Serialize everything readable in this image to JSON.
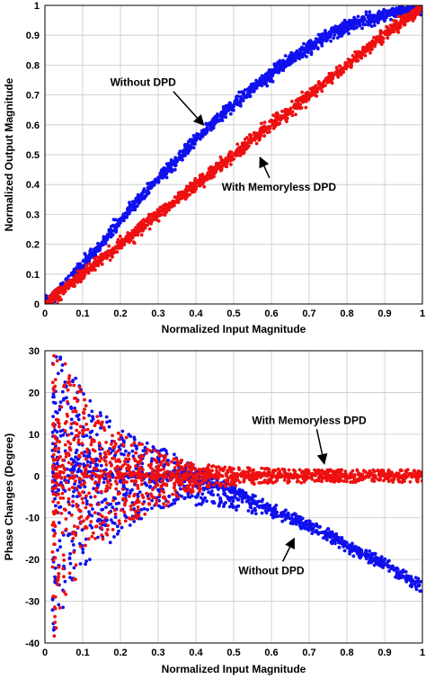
{
  "chart_data": [
    {
      "type": "scatter",
      "title": "",
      "xlabel": "Normalized Input Magnitude",
      "ylabel": "Normalized Output Magnitude",
      "xlim": [
        0,
        1
      ],
      "ylim": [
        0,
        1
      ],
      "xticks": [
        "0",
        "0.1",
        "0.2",
        "0.3",
        "0.4",
        "0.5",
        "0.6",
        "0.7",
        "0.8",
        "0.9",
        "1"
      ],
      "yticks": [
        "0",
        "0.1",
        "0.2",
        "0.3",
        "0.4",
        "0.5",
        "0.6",
        "0.7",
        "0.8",
        "0.9",
        "1"
      ],
      "grid": true,
      "series": [
        {
          "color": "#1010ee",
          "x": [
            0.0,
            0.05,
            0.1,
            0.15,
            0.2,
            0.25,
            0.3,
            0.35,
            0.4,
            0.45,
            0.5,
            0.55,
            0.6,
            0.65,
            0.7,
            0.75,
            0.8,
            0.85,
            0.9,
            0.95,
            1.0
          ],
          "y": [
            0.0,
            0.06,
            0.13,
            0.2,
            0.28,
            0.35,
            0.42,
            0.48,
            0.55,
            0.61,
            0.67,
            0.72,
            0.77,
            0.82,
            0.86,
            0.9,
            0.93,
            0.95,
            0.97,
            0.98,
            0.99
          ],
          "spread": 0.02
        },
        {
          "color": "#ee1010",
          "x": [
            0.0,
            0.05,
            0.1,
            0.15,
            0.2,
            0.25,
            0.3,
            0.35,
            0.4,
            0.45,
            0.5,
            0.55,
            0.6,
            0.65,
            0.7,
            0.75,
            0.8,
            0.85,
            0.9,
            0.95,
            1.0
          ],
          "y": [
            0.0,
            0.05,
            0.1,
            0.15,
            0.2,
            0.25,
            0.3,
            0.35,
            0.4,
            0.45,
            0.5,
            0.55,
            0.6,
            0.65,
            0.7,
            0.75,
            0.8,
            0.85,
            0.9,
            0.95,
            0.99
          ],
          "spread": 0.02
        }
      ],
      "annotations": [
        {
          "text": "Without DPD",
          "x": 0.26,
          "y": 0.73,
          "arrow_to": [
            0.42,
            0.6
          ]
        },
        {
          "text": "With Memoryless DPD",
          "x": 0.62,
          "y": 0.38,
          "arrow_to": [
            0.57,
            0.49
          ]
        }
      ]
    },
    {
      "type": "scatter",
      "title": "",
      "xlabel": "Normalized Input Magnitude",
      "ylabel": "Phase Changes (Degree)",
      "xlim": [
        0,
        1
      ],
      "ylim": [
        -40,
        30
      ],
      "xticks": [
        "0",
        "0.1",
        "0.2",
        "0.3",
        "0.4",
        "0.5",
        "0.6",
        "0.7",
        "0.8",
        "0.9",
        "1"
      ],
      "yticks": [
        "30",
        "20",
        "10",
        "0",
        "-10",
        "-20",
        "-30",
        "-40"
      ],
      "grid": true,
      "series": [
        {
          "color": "#1010ee",
          "x": [
            0.02,
            0.05,
            0.1,
            0.15,
            0.2,
            0.25,
            0.3,
            0.35,
            0.4,
            0.45,
            0.5,
            0.55,
            0.6,
            0.65,
            0.7,
            0.75,
            0.8,
            0.85,
            0.9,
            0.95,
            1.0
          ],
          "y": [
            0,
            0,
            0,
            0,
            0,
            0,
            0,
            0,
            -1,
            -2,
            -4,
            -6,
            -8,
            -10,
            -12,
            -14,
            -17,
            -19,
            -21,
            -24,
            -26.5
          ],
          "spread_upper": [
            32,
            28,
            22,
            16,
            12,
            9,
            7,
            5,
            3,
            2,
            1.5,
            1.5,
            1.5,
            1.5,
            1.5,
            1.5,
            1.5,
            1.5,
            1.5,
            1.5,
            1.5
          ],
          "spread_lower": [
            40,
            32,
            24,
            18,
            14,
            11,
            9,
            7,
            6,
            5,
            4,
            3,
            2,
            1.5,
            1.5,
            1.5,
            1.5,
            1.5,
            1.5,
            1.5,
            1.5
          ]
        },
        {
          "color": "#ee1010",
          "x": [
            0.02,
            0.05,
            0.1,
            0.15,
            0.2,
            0.25,
            0.3,
            0.35,
            0.4,
            0.45,
            0.5,
            0.55,
            0.6,
            0.65,
            0.7,
            0.75,
            0.8,
            0.85,
            0.9,
            0.95,
            1.0
          ],
          "y": [
            0,
            0,
            0,
            0,
            0,
            0,
            0,
            0,
            0,
            0,
            0,
            0,
            0,
            0,
            0,
            0,
            0,
            0,
            0,
            0,
            0
          ],
          "spread_upper": [
            30,
            28,
            20,
            14,
            10,
            8,
            6,
            4,
            3,
            2.5,
            2,
            2,
            1.8,
            1.6,
            1.5,
            1.5,
            1.5,
            1.5,
            1.5,
            1.5,
            1.5
          ],
          "spread_lower": [
            40,
            32,
            22,
            16,
            12,
            10,
            8,
            6,
            4,
            3,
            2.5,
            2,
            2,
            1.8,
            1.6,
            1.5,
            1.5,
            1.5,
            1.5,
            1.5,
            1.5
          ]
        }
      ],
      "annotations": [
        {
          "text": "With Memoryless DPD",
          "x": 0.7,
          "y": 12.5,
          "arrow_to": [
            0.74,
            3
          ]
        },
        {
          "text": "Without DPD",
          "x": 0.6,
          "y": -23.5,
          "arrow_to": [
            0.66,
            -15
          ]
        }
      ]
    }
  ]
}
